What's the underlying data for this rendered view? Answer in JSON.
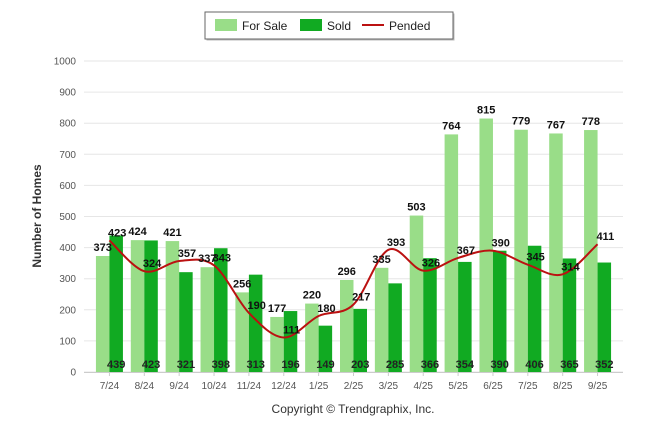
{
  "chart_data": {
    "type": "bar",
    "title": "",
    "xlabel": "",
    "ylabel": "Number of Homes",
    "ylim": [
      0,
      1000
    ],
    "yticks": [
      0,
      100,
      200,
      300,
      400,
      500,
      600,
      700,
      800,
      900,
      1000
    ],
    "grid": true,
    "legend_position": "top-center",
    "categories": [
      "7/24",
      "8/24",
      "9/24",
      "10/24",
      "11/24",
      "12/24",
      "1/25",
      "2/25",
      "3/25",
      "4/25",
      "5/25",
      "6/25",
      "7/25",
      "8/25",
      "9/25"
    ],
    "series": [
      {
        "name": "For Sale",
        "kind": "bar",
        "color": "#99dd88",
        "values": [
          373,
          424,
          421,
          337,
          256,
          177,
          220,
          296,
          335,
          503,
          764,
          815,
          779,
          767,
          778
        ]
      },
      {
        "name": "Sold",
        "kind": "bar",
        "color": "#11aa22",
        "values": [
          439,
          423,
          321,
          398,
          313,
          196,
          149,
          203,
          285,
          366,
          354,
          390,
          406,
          365,
          352
        ]
      },
      {
        "name": "Pended",
        "kind": "line",
        "color": "#bb1111",
        "values": [
          423,
          324,
          357,
          343,
          190,
          111,
          180,
          217,
          393,
          326,
          367,
          390,
          345,
          314,
          411
        ]
      }
    ]
  },
  "footer": {
    "copyright": "Copyright © Trendgraphix, Inc."
  }
}
